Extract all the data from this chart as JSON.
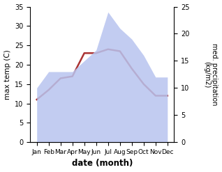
{
  "months": [
    "Jan",
    "Feb",
    "Mar",
    "Apr",
    "May",
    "Jun",
    "Jul",
    "Aug",
    "Sep",
    "Oct",
    "Nov",
    "Dec"
  ],
  "max_temp": [
    11,
    13.5,
    16.5,
    17,
    23,
    23,
    24,
    23.5,
    19,
    15,
    12,
    12
  ],
  "precipitation": [
    10,
    13,
    13,
    13,
    15,
    17,
    24,
    21,
    19,
    16,
    12,
    12
  ],
  "temp_ylim": [
    0,
    35
  ],
  "precip_ylim": [
    0,
    25
  ],
  "temp_yticks": [
    0,
    5,
    10,
    15,
    20,
    25,
    30,
    35
  ],
  "precip_yticks": [
    0,
    5,
    10,
    15,
    20,
    25
  ],
  "fill_color": "#b8c4ef",
  "line_color": "#aa3333",
  "line_width": 1.8,
  "xlabel": "date (month)",
  "ylabel_left": "max temp (C)",
  "ylabel_right": "med. precipitation\n(kg/m2)",
  "figsize": [
    3.18,
    2.47
  ],
  "dpi": 100
}
